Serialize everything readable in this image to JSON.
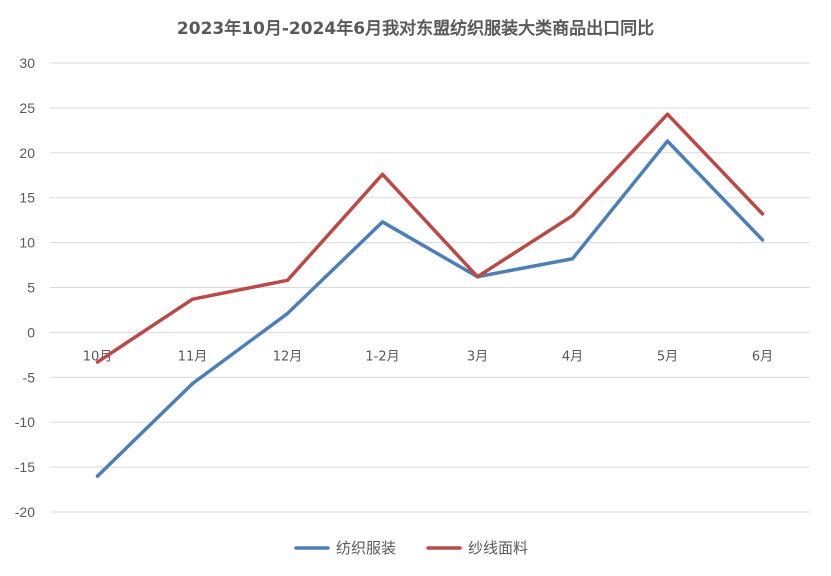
{
  "chart_data": {
    "type": "line",
    "title": "2023年10月-2024年6月我对东盟纺织服装大类商品出口同比",
    "categories": [
      "10月",
      "11月",
      "12月",
      "1-2月",
      "3月",
      "4月",
      "5月",
      "6月"
    ],
    "y_ticks": [
      "30",
      "25",
      "20",
      "15",
      "10",
      "5",
      "0",
      "-5",
      "-10",
      "-15",
      "-20"
    ],
    "ylim": [
      -20,
      30
    ],
    "grid": true,
    "legend_position": "bottom",
    "series": [
      {
        "name": "纺织服装",
        "color": "#4E7EB3",
        "values": [
          -16.0,
          -5.7,
          2.1,
          12.3,
          6.2,
          8.2,
          21.3,
          10.3
        ]
      },
      {
        "name": "纱线面料",
        "color": "#B84A47",
        "values": [
          -3.3,
          3.7,
          5.8,
          17.6,
          6.2,
          13.0,
          24.3,
          13.2
        ]
      }
    ]
  }
}
